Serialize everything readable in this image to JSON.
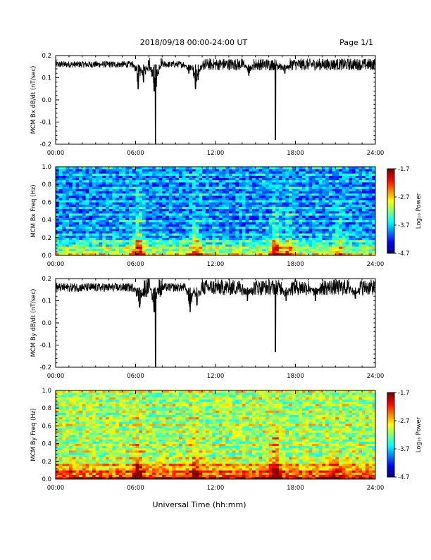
{
  "header": {
    "title": "2018/09/18   00:00-24:00 UT",
    "page": "Page 1/1"
  },
  "footer": {
    "xlabel": "Universal Time (hh:mm)"
  },
  "chart_data": [
    {
      "type": "line",
      "title": "",
      "ylabel": "MCM Bx dB/dt (nT/sec)",
      "xlabel": "",
      "xlim": [
        0,
        24
      ],
      "ylim": [
        -0.2,
        0.2
      ],
      "x_ticks": [
        "00:00",
        "06:00",
        "12:00",
        "18:00",
        "24:00"
      ],
      "y_ticks": [
        "-0.2",
        "-0.1",
        "0.0",
        "0.1",
        "0.2"
      ],
      "baseline": 0.16,
      "noise_band": 0.015,
      "spikes": [
        {
          "x": 6.2,
          "y": 0.05
        },
        {
          "x": 6.6,
          "y": 0.08
        },
        {
          "x": 7.4,
          "y": 0.04
        },
        {
          "x": 7.5,
          "y": -0.2
        },
        {
          "x": 7.55,
          "y": 0.06
        },
        {
          "x": 10.0,
          "y": 0.12
        },
        {
          "x": 10.5,
          "y": 0.05
        },
        {
          "x": 10.7,
          "y": 0.09
        },
        {
          "x": 14.5,
          "y": 0.11
        },
        {
          "x": 16.5,
          "y": -0.18
        },
        {
          "x": 17.2,
          "y": 0.12
        }
      ],
      "grid": false
    },
    {
      "type": "heatmap",
      "title": "",
      "ylabel": "MCM Bx Freq (Hz)",
      "xlabel": "",
      "xlim": [
        0,
        24
      ],
      "ylim": [
        0.0,
        1.0
      ],
      "x_ticks": [
        "00:00",
        "06:00",
        "12:00",
        "18:00",
        "24:00"
      ],
      "y_ticks": [
        "0.0",
        "0.2",
        "0.4",
        "0.6",
        "0.8",
        "1.0"
      ],
      "colorbar": {
        "label": "Log₁₀ Power",
        "ticks": [
          "-1.7",
          "-2.7",
          "-3.7",
          "-4.7"
        ],
        "range": [
          -4.7,
          -1.7
        ]
      },
      "background_level": -4.0,
      "events": [
        {
          "x": 6.2,
          "strength": 0.9
        },
        {
          "x": 10.5,
          "strength": 0.7
        },
        {
          "x": 16.5,
          "strength": 1.0
        },
        {
          "x": 17.5,
          "strength": 0.6
        },
        {
          "x": 21.3,
          "strength": 0.5
        }
      ]
    },
    {
      "type": "line",
      "title": "",
      "ylabel": "MCM By dB/dt (nT/sec)",
      "xlabel": "",
      "xlim": [
        0,
        24
      ],
      "ylim": [
        -0.2,
        0.2
      ],
      "x_ticks": [
        "00:00",
        "06:00",
        "12:00",
        "18:00",
        "24:00"
      ],
      "y_ticks": [
        "-0.2",
        "-0.1",
        "0.0",
        "0.1",
        "0.2"
      ],
      "baseline": 0.16,
      "noise_band": 0.02,
      "spikes": [
        {
          "x": 6.3,
          "y": 0.07
        },
        {
          "x": 7.4,
          "y": 0.05
        },
        {
          "x": 7.5,
          "y": -0.2
        },
        {
          "x": 10.1,
          "y": 0.05
        },
        {
          "x": 10.6,
          "y": 0.08
        },
        {
          "x": 14.4,
          "y": 0.1
        },
        {
          "x": 16.5,
          "y": -0.13
        },
        {
          "x": 17.3,
          "y": 0.1
        },
        {
          "x": 19.5,
          "y": 0.1
        },
        {
          "x": 22.5,
          "y": 0.11
        }
      ],
      "grid": false
    },
    {
      "type": "heatmap",
      "title": "",
      "ylabel": "MCM By Freq (Hz)",
      "xlabel": "",
      "xlim": [
        0,
        24
      ],
      "ylim": [
        0.0,
        1.0
      ],
      "x_ticks": [
        "00:00",
        "06:00",
        "12:00",
        "18:00",
        "24:00"
      ],
      "y_ticks": [
        "0.0",
        "0.2",
        "0.4",
        "0.6",
        "0.8",
        "1.0"
      ],
      "colorbar": {
        "label": "Log₁₀ Power",
        "ticks": [
          "-1.7",
          "-2.7",
          "-3.7",
          "-4.7"
        ],
        "range": [
          -4.7,
          -1.7
        ]
      },
      "background_level": -3.2,
      "events": [
        {
          "x": 6.2,
          "strength": 0.7
        },
        {
          "x": 10.5,
          "strength": 0.6
        },
        {
          "x": 16.5,
          "strength": 0.9
        },
        {
          "x": 21.0,
          "strength": 0.4
        }
      ]
    }
  ]
}
